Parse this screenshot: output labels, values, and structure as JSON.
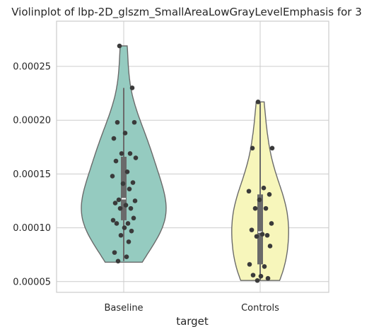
{
  "chart_data": {
    "type": "violin",
    "title": "Violinplot of lbp-2D_glszm_SmallAreaLowGrayLevelEmphasis for 3",
    "xlabel": "target",
    "ylabel": "",
    "categories": [
      "Baseline",
      "Controls"
    ],
    "yticks": [
      "0.00005",
      "0.00010",
      "0.00015",
      "0.00020",
      "0.00025"
    ],
    "ytick_values": [
      5e-05,
      0.0001,
      0.00015,
      0.0002,
      0.00025
    ],
    "ylim": [
      4e-05,
      0.000292
    ],
    "grid": true,
    "series": [
      {
        "category": "Baseline",
        "color": "#95cbc0",
        "min": 6.8e-05,
        "max": 0.000269,
        "q1": 0.000107,
        "median": 0.000127,
        "q3": 0.000166,
        "whisker_low": 6.9e-05,
        "whisker_high": 0.00023,
        "points": [
          0.000269,
          0.00023,
          0.000198,
          0.000198,
          0.000188,
          0.000183,
          0.000169,
          0.000169,
          0.000165,
          0.000162,
          0.000152,
          0.000148,
          0.000142,
          0.000141,
          0.000136,
          0.000126,
          0.000125,
          0.000123,
          0.000121,
          0.000118,
          0.000118,
          0.000109,
          0.000107,
          0.000104,
          0.000104,
          0.0001,
          9.7e-05,
          9.3e-05,
          8.7e-05,
          7.7e-05,
          7.3e-05,
          6.9e-05
        ]
      },
      {
        "category": "Controls",
        "color": "#f7f6bb",
        "min": 5.1e-05,
        "max": 0.000217,
        "q1": 6.6e-05,
        "median": 9.6e-05,
        "q3": 0.000131,
        "whisker_low": 5.1e-05,
        "whisker_high": 0.000217,
        "points": [
          0.000217,
          0.000174,
          0.000174,
          0.000137,
          0.000134,
          0.000131,
          0.000126,
          0.000118,
          0.000118,
          0.000104,
          9.8e-05,
          9.4e-05,
          9.3e-05,
          9.2e-05,
          8.3e-05,
          6.6e-05,
          6.4e-05,
          5.6e-05,
          5.5e-05,
          5.3e-05,
          5.1e-05
        ]
      }
    ]
  }
}
